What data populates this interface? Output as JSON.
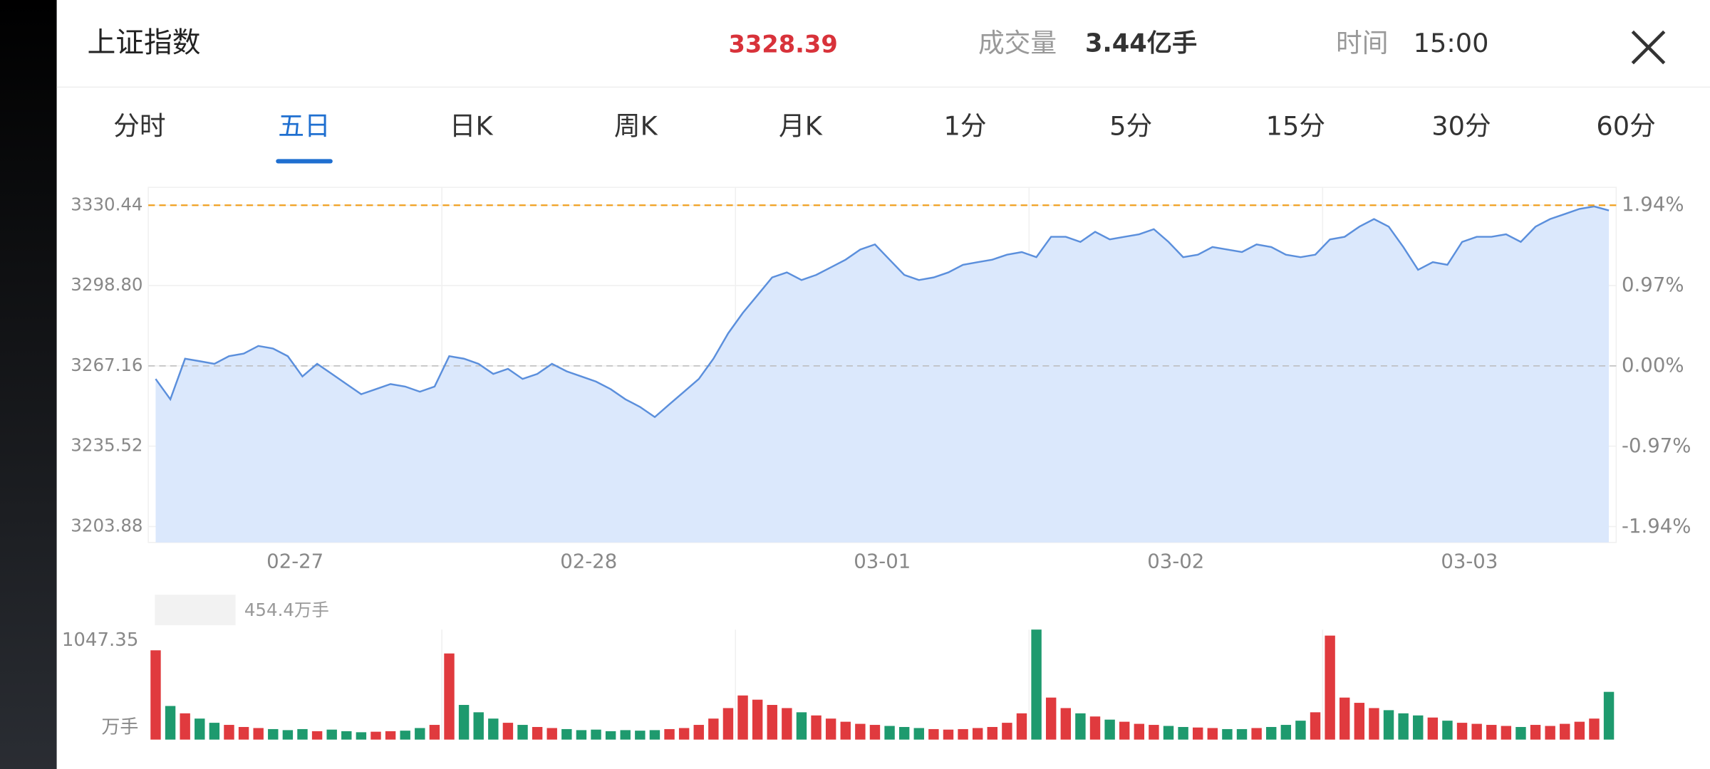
{
  "header": {
    "title": "上证指数",
    "price": "3328.39",
    "volume_label": "成交量",
    "volume": "3.44亿手",
    "time_label": "时间",
    "time": "15:00"
  },
  "tabs": {
    "items": [
      "分时",
      "五日",
      "日K",
      "周K",
      "月K",
      "1分",
      "5分",
      "15分",
      "30分",
      "60分"
    ],
    "active": 1
  },
  "chart_data": [
    {
      "type": "line",
      "categories": [
        "02-27",
        "02-28",
        "03-01",
        "03-02",
        "03-03"
      ],
      "values": [
        [
          3262,
          3254,
          3270,
          3269,
          3268,
          3271,
          3272,
          3275,
          3274,
          3271,
          3263,
          3268,
          3264,
          3260,
          3256,
          3258,
          3260,
          3259,
          3257,
          3259
        ],
        [
          3271,
          3270,
          3268,
          3264,
          3266,
          3262,
          3264,
          3268,
          3265,
          3263,
          3261,
          3258,
          3254,
          3251,
          3247,
          3252,
          3257,
          3262,
          3270,
          3280
        ],
        [
          3288,
          3295,
          3302,
          3304,
          3301,
          3303,
          3306,
          3309,
          3313,
          3315,
          3309,
          3303,
          3301,
          3302,
          3304,
          3307,
          3308,
          3309,
          3311,
          3312
        ],
        [
          3310,
          3318,
          3318,
          3316,
          3320,
          3317,
          3318,
          3319,
          3321,
          3316,
          3310,
          3311,
          3314,
          3313,
          3312,
          3315,
          3314,
          3311,
          3310,
          3311
        ],
        [
          3317,
          3318,
          3322,
          3325,
          3322,
          3314,
          3305,
          3308,
          3307,
          3316,
          3318,
          3318,
          3319,
          3316,
          3322,
          3325,
          3327,
          3329,
          3330,
          3328.39
        ]
      ],
      "color": "#5b8fdc",
      "fill": "#dbe8fc",
      "ylim": [
        3197.6,
        3337.5
      ],
      "yticks": [
        3330.44,
        {
          "value": 3298.8,
          "label": "3298.80"
        },
        3267.16,
        3235.52,
        3203.88
      ],
      "y2lim": [
        -2.129,
        2.153
      ],
      "y2ticks": [
        {
          "value": 1.94,
          "label": "1.94%"
        },
        {
          "value": 0.97,
          "label": "0.97%"
        },
        {
          "value": 0,
          "label": "0.00%"
        },
        {
          "value": -0.97,
          "label": "-0.97%"
        },
        {
          "value": -1.94,
          "label": "-1.94%"
        }
      ],
      "high_line": {
        "value": 3330.44,
        "color": "#f0a020"
      },
      "prev_close": 3267.16,
      "grid": true
    },
    {
      "type": "bar",
      "title": "成交量",
      "subtitle": "454.4万手",
      "y_unit": "万手",
      "values": [
        [
          850,
          320,
          250,
          200,
          160,
          140,
          120,
          110,
          100,
          90,
          100,
          80,
          95,
          80,
          70,
          75,
          80,
          85,
          110,
          140
        ],
        [
          820,
          330,
          260,
          200,
          160,
          140,
          120,
          110,
          100,
          90,
          95,
          80,
          90,
          85,
          90,
          100,
          110,
          140,
          200,
          300
        ],
        [
          420,
          380,
          330,
          300,
          260,
          230,
          200,
          170,
          150,
          140,
          130,
          120,
          110,
          100,
          95,
          100,
          110,
          120,
          160,
          250
        ],
        [
          1047.35,
          400,
          300,
          250,
          220,
          190,
          170,
          150,
          140,
          130,
          120,
          115,
          110,
          100,
          100,
          110,
          120,
          140,
          180,
          260
        ],
        [
          990,
          400,
          350,
          300,
          280,
          250,
          230,
          210,
          180,
          160,
          150,
          140,
          130,
          120,
          140,
          130,
          150,
          170,
          200,
          454.4
        ]
      ],
      "ylim": [
        0,
        1047.35
      ],
      "yticks": [
        1047.35
      ],
      "up_color": "#e03a3e",
      "down_color": "#1e9a6e"
    }
  ]
}
